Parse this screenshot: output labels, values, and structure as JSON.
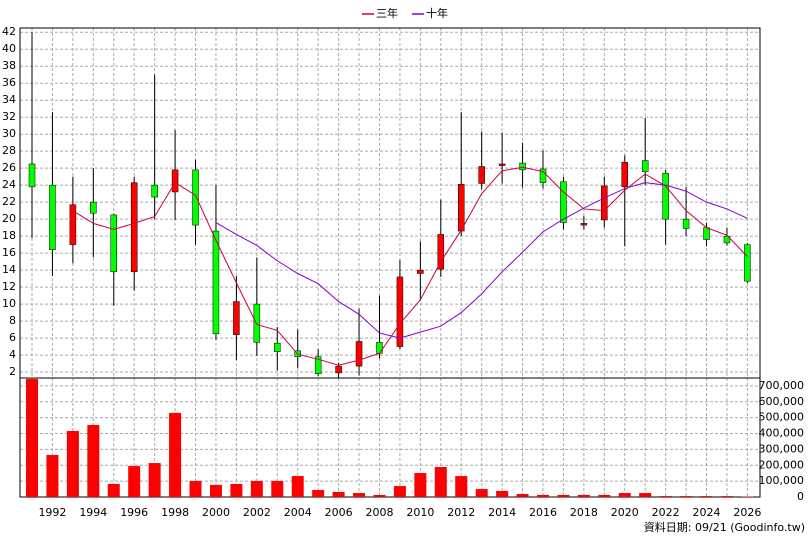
{
  "chart_data": [
    {
      "type": "candlestick",
      "categories": [
        null,
        "1992",
        null,
        "1994",
        null,
        "1996",
        null,
        "1998",
        null,
        "2000",
        null,
        "2002",
        null,
        "2004",
        null,
        "2006",
        null,
        "2008",
        null,
        "2010",
        null,
        "2012",
        null,
        "2014",
        null,
        "2016",
        null,
        "2018",
        null,
        "2020",
        null,
        "2022",
        null,
        "2024",
        null,
        "2026"
      ],
      "open": [
        26.5,
        24,
        17,
        22,
        20.5,
        13.8,
        24,
        23.2,
        25.8,
        18.6,
        6.4,
        10,
        5.4,
        4.5,
        3.8,
        1.9,
        2.7,
        5.5,
        5,
        13.6,
        14.1,
        18.6,
        24.2,
        26.3,
        26.6,
        25.9,
        24.4,
        19.3,
        19.9,
        23.8,
        26.9,
        25.4,
        20,
        19,
        18,
        17
      ],
      "close": [
        23.8,
        16.4,
        21.7,
        20.7,
        13.8,
        24.3,
        22.6,
        25.8,
        19.3,
        6.5,
        10.3,
        5.5,
        4.4,
        3.8,
        1.8,
        2.7,
        5.6,
        4.2,
        13.2,
        14,
        18.2,
        24.1,
        26.2,
        26.5,
        25.8,
        24.3,
        19.6,
        19.5,
        23.9,
        26.7,
        25.6,
        20,
        18.9,
        17.6,
        17.2,
        12.7
      ],
      "high": [
        42,
        32.6,
        25,
        26,
        20.6,
        25,
        37,
        30.5,
        27,
        24,
        13.3,
        15.5,
        7.3,
        7,
        4.7,
        3.1,
        9.5,
        11,
        15.2,
        17.4,
        22.3,
        32.6,
        30.3,
        30.2,
        29,
        28.1,
        25,
        20.4,
        25,
        27.5,
        31.9,
        25.8,
        23.8,
        19.6,
        19,
        17.2
      ],
      "low": [
        17.8,
        13.3,
        14.8,
        15.5,
        9.8,
        11.6,
        20,
        19.9,
        17,
        5.8,
        3.4,
        3.9,
        2.2,
        2.5,
        1.5,
        1.3,
        1.6,
        3.6,
        4.7,
        10.5,
        13.2,
        18,
        23.5,
        24.2,
        23.7,
        23.6,
        18.8,
        18.8,
        19,
        16.8,
        24,
        17,
        18,
        16.8,
        16.9,
        12.5
      ],
      "up_color": "#ff0000",
      "down_color": "#00ff00",
      "series": [
        {
          "name": "三年",
          "color": "#cc0044",
          "values": [
            null,
            null,
            21,
            19.5,
            18.8,
            19.5,
            20.3,
            24.3,
            22.8,
            17.5,
            12.5,
            7.6,
            6.9,
            4.1,
            3.5,
            2.8,
            3.4,
            4.2,
            7.7,
            10.5,
            15,
            18.7,
            23,
            25.7,
            26.1,
            25.6,
            23.2,
            21.2,
            21,
            23.4,
            25.3,
            23.9,
            21,
            19,
            18.1,
            15.6
          ]
        },
        {
          "name": "十年",
          "color": "#8800cc",
          "values": [
            null,
            null,
            null,
            null,
            null,
            null,
            null,
            null,
            null,
            19.6,
            18.2,
            16.9,
            15.1,
            13.6,
            12.4,
            10.3,
            8.8,
            6.6,
            6,
            6.7,
            7.4,
            9,
            11.2,
            13.8,
            16.1,
            18.5,
            20,
            21.3,
            22.5,
            23.6,
            24.3,
            24,
            23.3,
            22,
            21.2,
            20.1
          ]
        }
      ],
      "ylim": [
        1.3,
        42.5
      ],
      "yticks": [
        2,
        4,
        6,
        8,
        10,
        12,
        14,
        16,
        18,
        20,
        22,
        24,
        26,
        28,
        30,
        32,
        34,
        36,
        38,
        40,
        42
      ],
      "grid": true,
      "legend": "top"
    },
    {
      "type": "bar",
      "values": [
        744000,
        265000,
        416000,
        454000,
        82000,
        195000,
        214000,
        530000,
        101000,
        76000,
        82000,
        101000,
        101000,
        132000,
        44000,
        32000,
        25000,
        13000,
        69000,
        151000,
        189000,
        132000,
        50000,
        38000,
        19000,
        13000,
        13000,
        13000,
        13000,
        25000,
        25000,
        6000,
        6000,
        6000,
        6000,
        3000
      ],
      "color": "#ff0000",
      "ylim": [
        0,
        750000
      ],
      "yticks": [
        0,
        {
          "value": 100000,
          "label": "100,000"
        },
        {
          "value": 200000,
          "label": "200,000"
        },
        {
          "value": 300000,
          "label": "300,000"
        },
        {
          "value": 400000,
          "label": "400,000"
        },
        {
          "value": 500000,
          "label": "500,000"
        },
        {
          "value": 600000,
          "label": "600,000"
        },
        {
          "value": 700000,
          "label": "700,000"
        }
      ],
      "grid": true
    }
  ],
  "footer": "資料日期: 09/21 (Goodinfo.tw)"
}
